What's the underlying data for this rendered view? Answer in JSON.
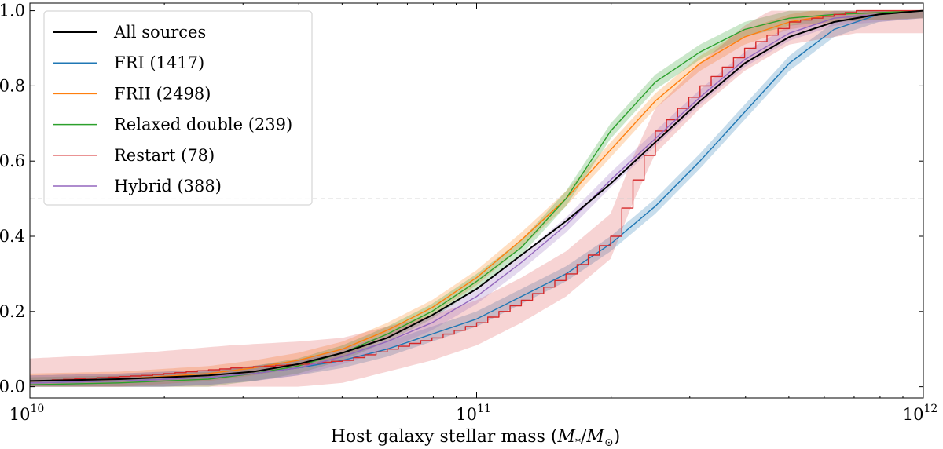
{
  "chart_data": {
    "type": "line",
    "title": "",
    "xlabel": "Host galaxy stellar mass (M*/M⊙)",
    "xlabel_parts": {
      "prefix": "Host galaxy stellar mass (",
      "num": "M",
      "num_sub": "*",
      "slash": "/",
      "den": "M",
      "den_sub": "⊙",
      "suffix": ")"
    },
    "ylabel": "",
    "xscale": "log",
    "xlim": [
      10000000000,
      1000000000000
    ],
    "ylim": [
      -0.03,
      1.02
    ],
    "x_ticks": [
      {
        "value": 10000000000,
        "base": "10",
        "exp": "10"
      },
      {
        "value": 100000000000,
        "base": "10",
        "exp": "11"
      },
      {
        "value": 1000000000000,
        "base": "10",
        "exp": "12"
      }
    ],
    "y_ticks": [
      {
        "value": 0.0,
        "label": "0.0"
      },
      {
        "value": 0.2,
        "label": "0.2"
      },
      {
        "value": 0.4,
        "label": "0.4"
      },
      {
        "value": 0.6,
        "label": "0.6"
      },
      {
        "value": 0.8,
        "label": "0.8"
      },
      {
        "value": 1.0,
        "label": "1.0"
      }
    ],
    "reference_line": {
      "y": 0.5,
      "style": "dashed",
      "color": "#cccccc"
    },
    "legend_position": "top-left",
    "series": [
      {
        "name": "All sources",
        "color": "#000000",
        "band": false,
        "step": false,
        "points": [
          [
            10.0,
            0.015
          ],
          [
            10.2,
            0.02
          ],
          [
            10.4,
            0.03
          ],
          [
            10.5,
            0.04
          ],
          [
            10.6,
            0.06
          ],
          [
            10.7,
            0.09
          ],
          [
            10.8,
            0.13
          ],
          [
            10.9,
            0.19
          ],
          [
            11.0,
            0.26
          ],
          [
            11.1,
            0.35
          ],
          [
            11.2,
            0.44
          ],
          [
            11.3,
            0.54
          ],
          [
            11.4,
            0.65
          ],
          [
            11.5,
            0.76
          ],
          [
            11.6,
            0.86
          ],
          [
            11.7,
            0.93
          ],
          [
            11.8,
            0.97
          ],
          [
            11.9,
            0.99
          ],
          [
            12.0,
            1.0
          ]
        ]
      },
      {
        "name": "FRI (1417)",
        "color": "#1f77b4",
        "band": true,
        "step": false,
        "points": [
          [
            10.0,
            0.01
          ],
          [
            10.2,
            0.015
          ],
          [
            10.4,
            0.025
          ],
          [
            10.5,
            0.035
          ],
          [
            10.6,
            0.05
          ],
          [
            10.7,
            0.07
          ],
          [
            10.8,
            0.1
          ],
          [
            10.9,
            0.14
          ],
          [
            11.0,
            0.18
          ],
          [
            11.1,
            0.24
          ],
          [
            11.2,
            0.3
          ],
          [
            11.3,
            0.38
          ],
          [
            11.4,
            0.48
          ],
          [
            11.5,
            0.6
          ],
          [
            11.6,
            0.73
          ],
          [
            11.7,
            0.86
          ],
          [
            11.8,
            0.95
          ],
          [
            11.9,
            0.99
          ],
          [
            12.0,
            1.0
          ]
        ]
      },
      {
        "name": "FRII (2498)",
        "color": "#ff7f0e",
        "band": true,
        "step": false,
        "points": [
          [
            10.0,
            0.015
          ],
          [
            10.2,
            0.02
          ],
          [
            10.4,
            0.035
          ],
          [
            10.5,
            0.05
          ],
          [
            10.6,
            0.07
          ],
          [
            10.7,
            0.1
          ],
          [
            10.8,
            0.15
          ],
          [
            10.9,
            0.21
          ],
          [
            11.0,
            0.29
          ],
          [
            11.1,
            0.39
          ],
          [
            11.2,
            0.5
          ],
          [
            11.3,
            0.63
          ],
          [
            11.4,
            0.76
          ],
          [
            11.5,
            0.86
          ],
          [
            11.6,
            0.93
          ],
          [
            11.7,
            0.97
          ],
          [
            11.8,
            0.99
          ],
          [
            12.0,
            1.0
          ]
        ]
      },
      {
        "name": "Relaxed double (239)",
        "color": "#2ca02c",
        "band": true,
        "step": false,
        "points": [
          [
            10.0,
            0.005
          ],
          [
            10.2,
            0.01
          ],
          [
            10.4,
            0.02
          ],
          [
            10.5,
            0.035
          ],
          [
            10.6,
            0.055
          ],
          [
            10.7,
            0.09
          ],
          [
            10.8,
            0.14
          ],
          [
            10.9,
            0.2
          ],
          [
            11.0,
            0.28
          ],
          [
            11.1,
            0.37
          ],
          [
            11.2,
            0.5
          ],
          [
            11.3,
            0.68
          ],
          [
            11.4,
            0.81
          ],
          [
            11.5,
            0.89
          ],
          [
            11.6,
            0.95
          ],
          [
            11.7,
            0.98
          ],
          [
            11.8,
            0.99
          ],
          [
            12.0,
            1.0
          ]
        ]
      },
      {
        "name": "Restart (78)",
        "color": "#d62728",
        "band": true,
        "step": true,
        "points": [
          [
            10.0,
            0.015
          ],
          [
            10.25,
            0.03
          ],
          [
            10.45,
            0.05
          ],
          [
            10.6,
            0.06
          ],
          [
            10.7,
            0.07
          ],
          [
            10.8,
            0.1
          ],
          [
            10.9,
            0.13
          ],
          [
            11.0,
            0.17
          ],
          [
            11.1,
            0.23
          ],
          [
            11.2,
            0.3
          ],
          [
            11.3,
            0.4
          ],
          [
            11.35,
            0.55
          ],
          [
            11.4,
            0.68
          ],
          [
            11.5,
            0.8
          ],
          [
            11.6,
            0.9
          ],
          [
            11.7,
            0.97
          ],
          [
            11.85,
            1.0
          ],
          [
            12.0,
            1.0
          ]
        ]
      },
      {
        "name": "Hybrid (388)",
        "color": "#9467bd",
        "band": true,
        "step": false,
        "points": [
          [
            10.0,
            0.01
          ],
          [
            10.2,
            0.015
          ],
          [
            10.4,
            0.025
          ],
          [
            10.5,
            0.035
          ],
          [
            10.6,
            0.05
          ],
          [
            10.7,
            0.08
          ],
          [
            10.8,
            0.12
          ],
          [
            10.9,
            0.17
          ],
          [
            11.0,
            0.24
          ],
          [
            11.1,
            0.33
          ],
          [
            11.2,
            0.43
          ],
          [
            11.3,
            0.55
          ],
          [
            11.4,
            0.66
          ],
          [
            11.5,
            0.77
          ],
          [
            11.6,
            0.87
          ],
          [
            11.7,
            0.94
          ],
          [
            11.8,
            0.98
          ],
          [
            12.0,
            1.0
          ]
        ]
      }
    ]
  }
}
